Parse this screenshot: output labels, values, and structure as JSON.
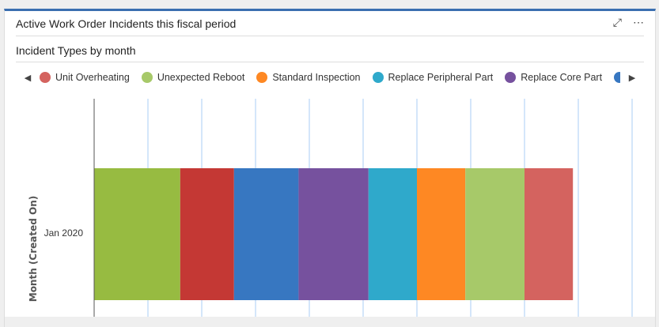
{
  "card": {
    "title": "Active Work Order Incidents this fiscal period",
    "subtitle": "Incident Types by month",
    "expand_icon": "expand-icon",
    "more_icon": "more-icon"
  },
  "legend": [
    {
      "name": "Unit Overheating",
      "color": "#d4635f"
    },
    {
      "name": "Unexpected Reboot",
      "color": "#a7c969"
    },
    {
      "name": "Standard Inspection",
      "color": "#fe8823"
    },
    {
      "name": "Replace Peripheral Part",
      "color": "#2fa9cb"
    },
    {
      "name": "Replace Core Part",
      "color": "#76519e"
    }
  ],
  "chart_data": {
    "type": "bar",
    "orientation": "horizontal",
    "stacked": true,
    "title": "Incident Types by month",
    "ylabel": "Month (Created On)",
    "xlabel": "",
    "categories": [
      "Jan 2020"
    ],
    "xlim": [
      0,
      10
    ],
    "grid": true,
    "legend_position": "top",
    "series": [
      {
        "name": "",
        "color": "#97bb41",
        "values": [
          1.6
        ]
      },
      {
        "name": "",
        "color": "#c43834",
        "values": [
          1.0
        ]
      },
      {
        "name": "",
        "color": "#3777c1",
        "values": [
          1.2
        ]
      },
      {
        "name": "Replace Core Part",
        "color": "#76519e",
        "values": [
          1.3
        ]
      },
      {
        "name": "Replace Peripheral Part",
        "color": "#2fa9cb",
        "values": [
          0.9
        ]
      },
      {
        "name": "Standard Inspection",
        "color": "#fe8823",
        "values": [
          0.9
        ]
      },
      {
        "name": "Unexpected Reboot",
        "color": "#a7c969",
        "values": [
          1.1
        ]
      },
      {
        "name": "Unit Overheating",
        "color": "#d4635f",
        "values": [
          0.9
        ]
      }
    ]
  }
}
